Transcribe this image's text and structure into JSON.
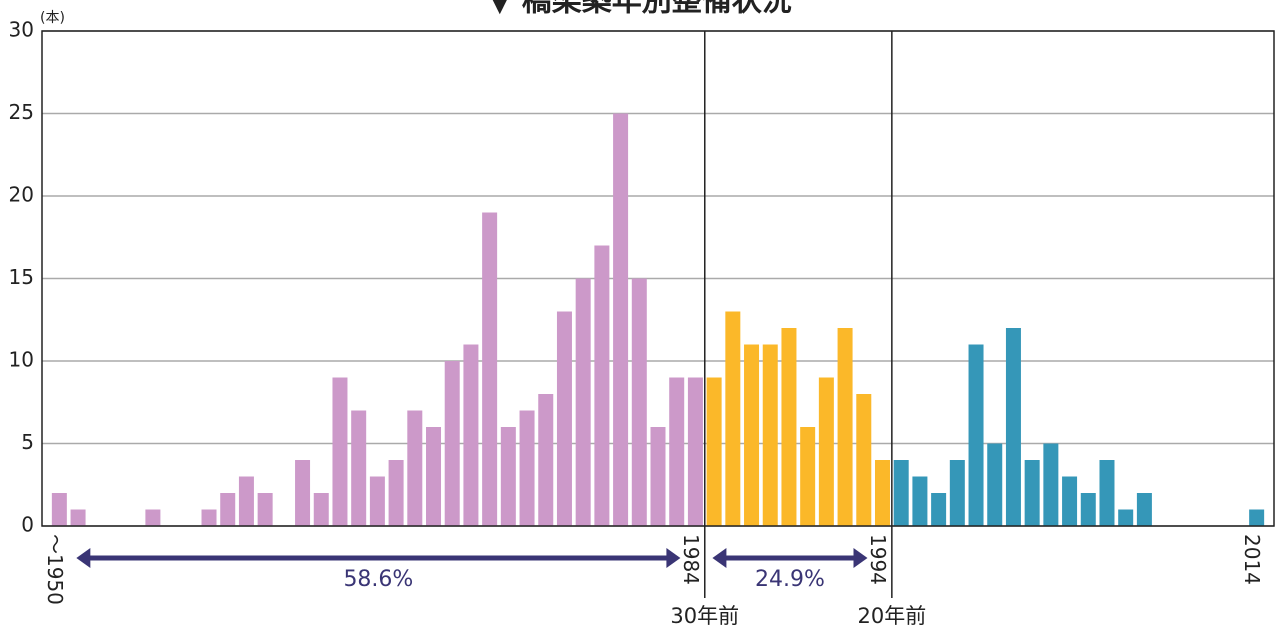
{
  "chart_data": {
    "type": "bar",
    "title": "▼ 橋梁築年別整備状況",
    "y_unit": "(本)",
    "categories": [
      "～1950",
      null,
      null,
      null,
      null,
      null,
      null,
      null,
      null,
      null,
      null,
      null,
      null,
      null,
      null,
      null,
      null,
      null,
      null,
      null,
      null,
      null,
      null,
      null,
      null,
      null,
      null,
      null,
      null,
      null,
      null,
      null,
      null,
      null,
      "1984",
      null,
      null,
      null,
      null,
      null,
      null,
      null,
      null,
      null,
      "1994",
      null,
      null,
      null,
      null,
      null,
      null,
      null,
      null,
      null,
      null,
      null,
      null,
      null,
      null,
      null,
      null,
      null,
      null,
      null,
      "2014"
    ],
    "series": [
      {
        "color": "#cc99c9",
        "values": [
          2,
          1,
          0,
          0,
          0,
          1,
          0,
          0,
          1,
          2,
          3,
          2,
          0,
          4,
          2,
          9,
          7,
          3,
          4,
          7,
          6,
          10,
          11,
          19,
          6,
          7,
          8,
          13,
          15,
          17,
          25,
          15,
          6,
          9,
          9,
          null,
          null,
          null,
          null,
          null,
          null,
          null,
          null,
          null,
          null,
          null,
          null,
          null,
          null,
          null,
          null,
          null,
          null,
          null,
          null,
          null,
          null,
          null,
          null,
          null,
          null,
          null,
          null,
          null,
          null
        ]
      },
      {
        "color": "#fbb829",
        "values": [
          null,
          null,
          null,
          null,
          null,
          null,
          null,
          null,
          null,
          null,
          null,
          null,
          null,
          null,
          null,
          null,
          null,
          null,
          null,
          null,
          null,
          null,
          null,
          null,
          null,
          null,
          null,
          null,
          null,
          null,
          null,
          null,
          null,
          null,
          null,
          9,
          13,
          11,
          11,
          12,
          6,
          9,
          12,
          8,
          4,
          null,
          null,
          null,
          null,
          null,
          null,
          null,
          null,
          null,
          null,
          null,
          null,
          null,
          null,
          null,
          null,
          null,
          null,
          null,
          null
        ]
      },
      {
        "color": "#3597b8",
        "values": [
          null,
          null,
          null,
          null,
          null,
          null,
          null,
          null,
          null,
          null,
          null,
          null,
          null,
          null,
          null,
          null,
          null,
          null,
          null,
          null,
          null,
          null,
          null,
          null,
          null,
          null,
          null,
          null,
          null,
          null,
          null,
          null,
          null,
          null,
          null,
          null,
          null,
          null,
          null,
          null,
          null,
          null,
          null,
          null,
          null,
          4,
          3,
          2,
          4,
          11,
          5,
          12,
          4,
          5,
          3,
          2,
          4,
          1,
          2,
          0,
          0,
          0,
          0,
          0,
          1
        ]
      }
    ],
    "ylim": [
      0,
      30
    ],
    "yticks": [
      0,
      5,
      10,
      15,
      20,
      25,
      30
    ],
    "grid": true,
    "dividers": [
      {
        "label": "30年前",
        "after": "1984"
      },
      {
        "label": "20年前",
        "after": "1994"
      }
    ],
    "ranges": [
      {
        "label": "58.6%",
        "from": "～1950",
        "to": "1984"
      },
      {
        "label": "24.9%",
        "from": "1984",
        "to": "1994"
      }
    ]
  }
}
